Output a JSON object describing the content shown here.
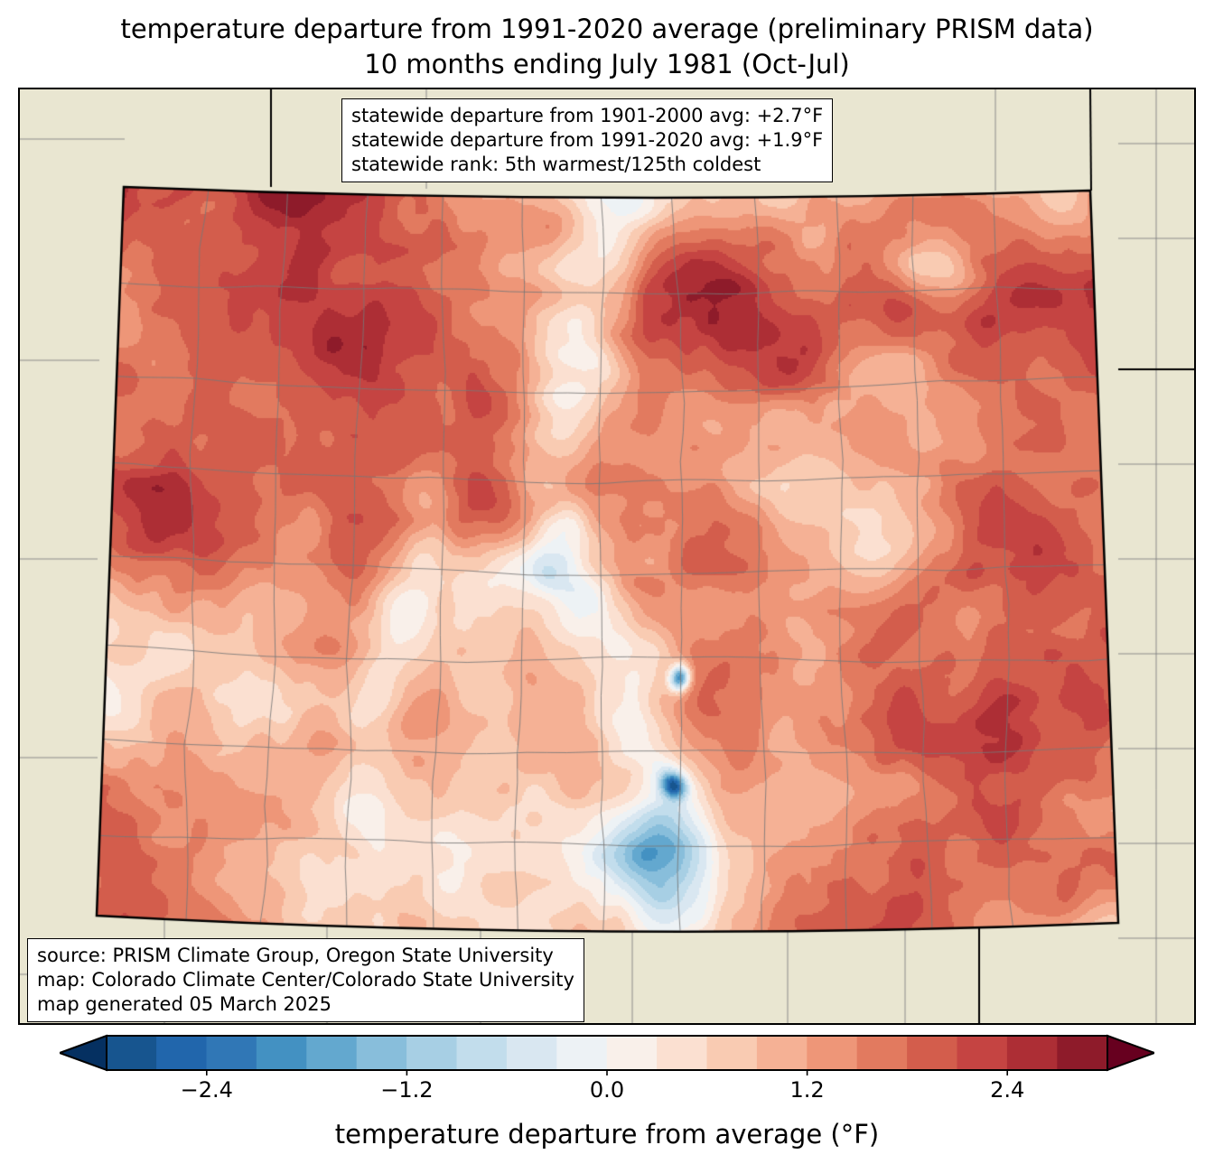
{
  "title": {
    "line1": "temperature departure from 1991-2020 average (preliminary PRISM data)",
    "line2": "10 months ending July 1981 (Oct-Jul)"
  },
  "stats_box": {
    "lines": [
      "statewide departure from 1901-2000 avg: +2.7°F",
      "statewide departure from 1991-2020 avg: +1.9°F",
      "statewide rank: 5th warmest/125th coldest"
    ]
  },
  "source_box": {
    "lines": [
      "source: PRISM Climate Group, Oregon State University",
      "map: Colorado Climate Center/Colorado State University",
      "map generated 05 March 2025"
    ]
  },
  "colorbar": {
    "label": "temperature departure from average (°F)",
    "range_min": -3.0,
    "range_max": 3.0,
    "step": 0.3,
    "ticks": [
      {
        "value": -2.4,
        "label": "−2.4"
      },
      {
        "value": -1.2,
        "label": "−1.2"
      },
      {
        "value": 0.0,
        "label": "0.0"
      },
      {
        "value": 1.2,
        "label": "1.2"
      },
      {
        "value": 2.4,
        "label": "2.4"
      }
    ],
    "colors": [
      "#17558f",
      "#2166ac",
      "#3077b6",
      "#4391c2",
      "#63a8cf",
      "#88bedb",
      "#a7cfe4",
      "#c2ddec",
      "#d9e7f1",
      "#edf2f5",
      "#f9f0ea",
      "#fbe0d1",
      "#f9cbb2",
      "#f5b195",
      "#ee9678",
      "#e27a5f",
      "#d35d4c",
      "#c54442",
      "#ad2e35",
      "#8e1b2a"
    ],
    "under_color": "#053061",
    "over_color": "#67001f"
  },
  "map": {
    "region": "Colorado",
    "background_color": "#e9e6d1",
    "county_line_color": "rgba(120,120,120,0.85)",
    "outside_county_line_color": "rgba(130,130,130,0.9)",
    "state_border_color": "#000000"
  }
}
